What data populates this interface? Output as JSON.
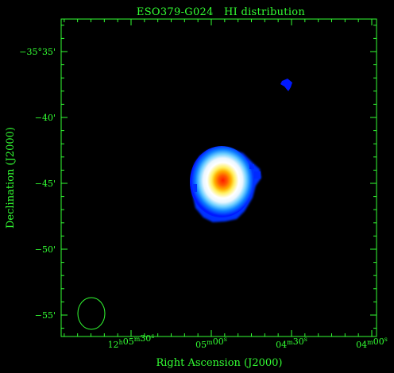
{
  "title": "ESO379-G024   HI distribution",
  "x_axis": {
    "label": "Right Ascension (J2000)",
    "ticks": [
      {
        "h": "12",
        "m": "05",
        "s": "30"
      },
      {
        "h": "",
        "m": "05",
        "s": "00"
      },
      {
        "h": "",
        "m": "04",
        "s": "30"
      },
      {
        "h": "",
        "m": "04",
        "s": "00"
      }
    ]
  },
  "y_axis": {
    "label": "Declination (J2000)",
    "ticks": [
      "−35°35'",
      "−40'",
      "−45'",
      "−50'",
      "−55'"
    ]
  },
  "colors": {
    "axes": "#33ff33",
    "background": "#000000",
    "colormap": [
      "#0000ff",
      "#00aaff",
      "#ffffff",
      "#ffcc00",
      "#ff0000"
    ]
  }
}
